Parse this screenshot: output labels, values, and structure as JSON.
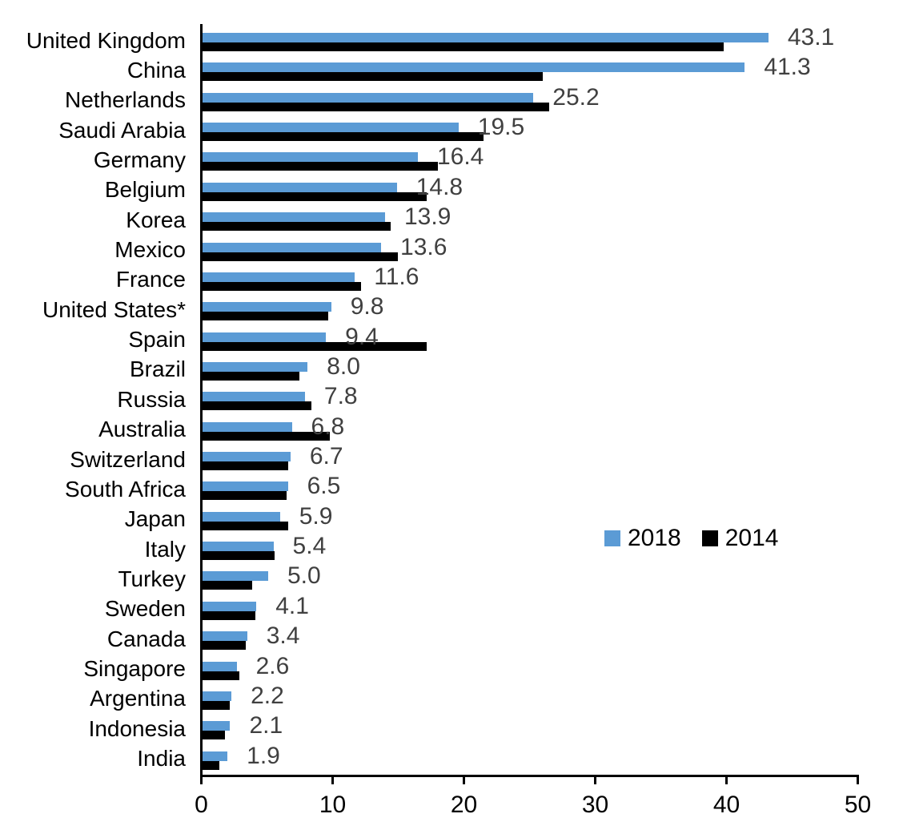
{
  "chart_data": {
    "type": "bar",
    "orientation": "horizontal",
    "title": "",
    "xlabel": "",
    "ylabel": "",
    "xlim": [
      0,
      50
    ],
    "xticks": [
      "0",
      "10",
      "20",
      "30",
      "40",
      "50"
    ],
    "grid": false,
    "legend_position": "center-right",
    "categories": [
      "United Kingdom",
      "China",
      "Netherlands",
      "Saudi Arabia",
      "Germany",
      "Belgium",
      "Korea",
      "Mexico",
      "France",
      "United States*",
      "Spain",
      "Brazil",
      "Russia",
      "Australia",
      "Switzerland",
      "South Africa",
      "Japan",
      "Italy",
      "Turkey",
      "Sweden",
      "Canada",
      "Singapore",
      "Argentina",
      "Indonesia",
      "India"
    ],
    "series": [
      {
        "name": "2018",
        "color": "#5B9BD5",
        "values": [
          43.1,
          41.3,
          25.2,
          19.5,
          16.4,
          14.8,
          13.9,
          13.6,
          11.6,
          9.8,
          9.4,
          8.0,
          7.8,
          6.8,
          6.7,
          6.5,
          5.9,
          5.4,
          5.0,
          4.1,
          3.4,
          2.6,
          2.2,
          2.1,
          1.9
        ]
      },
      {
        "name": "2014",
        "color": "#000000",
        "values": [
          39.7,
          25.9,
          26.4,
          21.4,
          17.9,
          17.1,
          14.3,
          14.9,
          12.1,
          9.6,
          17.1,
          7.4,
          8.3,
          9.7,
          6.5,
          6.4,
          6.5,
          5.5,
          3.8,
          4.0,
          3.3,
          2.8,
          2.1,
          1.7,
          1.3
        ]
      }
    ],
    "data_labels": [
      "43.1",
      "41.3",
      "25.2",
      "19.5",
      "16.4",
      "14.8",
      "13.9",
      "13.6",
      "11.6",
      "9.8",
      "9.4",
      "8.0",
      "7.8",
      "6.8",
      "6.7",
      "6.5",
      "5.9",
      "5.4",
      "5.0",
      "4.1",
      "3.4",
      "2.6",
      "2.2",
      "2.1",
      "1.9"
    ],
    "data_label_series": "2018",
    "data_label_color": "#404040",
    "axis_color": "#000000"
  },
  "legend": {
    "items": [
      {
        "label": "2018",
        "color": "#5B9BD5"
      },
      {
        "label": "2014",
        "color": "#000000"
      }
    ]
  }
}
